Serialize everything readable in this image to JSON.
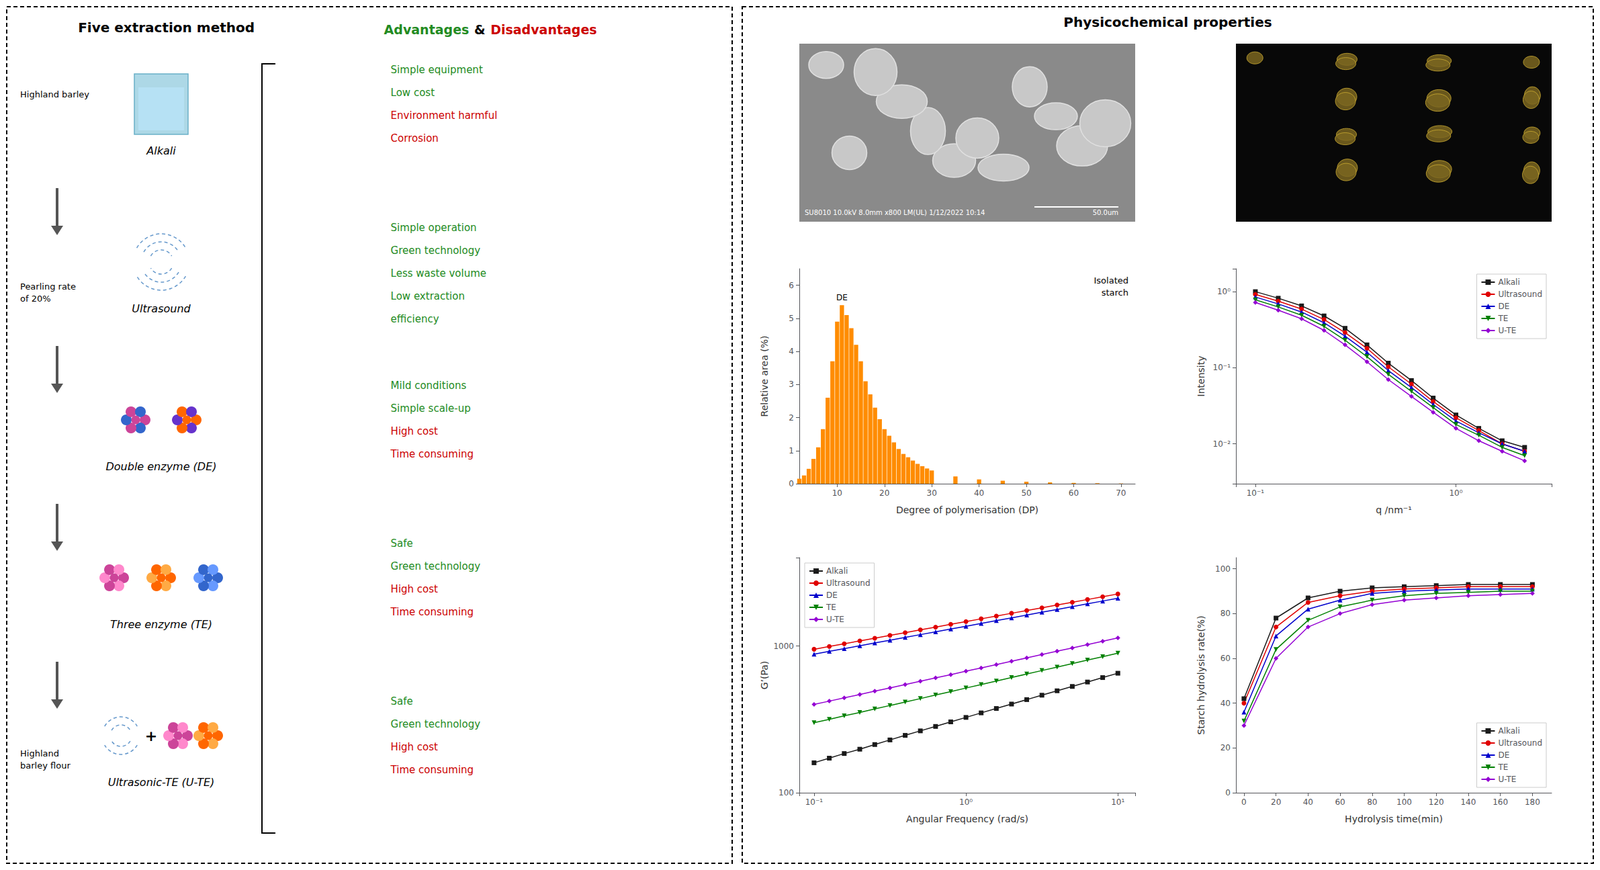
{
  "chart_data": [
    {
      "type": "diagram",
      "title": "Five extraction method",
      "categories": [
        "Alkali",
        "Ultrasound",
        "Double enzyme (DE)",
        "Three enzyme (TE)",
        "Ultrasonic-TE (U-TE)"
      ],
      "series": [
        {
          "name": "Advantages",
          "color": "#228B22",
          "values": [
            [
              "Simple equipment",
              "Low cost"
            ],
            [
              "Simple operation",
              "Green technology",
              "Less waste volume",
              "Low extraction",
              "efficiency"
            ],
            [
              "Mild conditions",
              "Simple scale-up"
            ],
            [
              "Safe",
              "Green technology"
            ],
            [
              "Safe",
              "Green technology"
            ]
          ]
        },
        {
          "name": "Disadvantages",
          "color": "#CC0000",
          "values": [
            [
              "Environment harmful",
              "Corrosion"
            ],
            [],
            [
              "High cost",
              "Time consuming"
            ],
            [
              "High cost",
              "Time consuming"
            ],
            [
              "High cost",
              "Time consuming"
            ]
          ]
        }
      ],
      "annotations": [
        "&",
        "Highland barley",
        "Pearling rate\nof 20%",
        "Highland\nbarley flour",
        "+"
      ]
    },
    {
      "type": "image",
      "title": "Physicochemical properties",
      "annotations": [
        "SU8010 10.0kV 8.0mm x800 LM(UL) 1/12/2022 10:14",
        "50.0um"
      ]
    },
    {
      "type": "bar",
      "x": [
        2,
        3,
        4,
        5,
        6,
        7,
        8,
        9,
        10,
        11,
        12,
        13,
        14,
        15,
        16,
        17,
        18,
        19,
        20,
        21,
        22,
        23,
        24,
        25,
        26,
        27,
        28,
        29,
        30,
        35,
        40,
        45,
        50,
        55,
        60,
        65,
        70
      ],
      "values": [
        0.15,
        0.25,
        0.45,
        0.75,
        1.1,
        1.65,
        2.6,
        3.7,
        4.9,
        5.4,
        5.1,
        4.7,
        4.2,
        3.7,
        3.1,
        2.7,
        2.3,
        1.95,
        1.65,
        1.45,
        1.25,
        1.05,
        0.9,
        0.8,
        0.7,
        0.6,
        0.53,
        0.46,
        0.4,
        0.22,
        0.13,
        0.09,
        0.06,
        0.04,
        0.025,
        0.015,
        0.008
      ],
      "color": "#FF8C00",
      "xlabel": "Degree of polymerisation (DP)",
      "ylabel": "Relative area (%)",
      "xlim": [
        2,
        73
      ],
      "xticks": [
        10,
        20,
        30,
        40,
        50,
        60,
        70
      ],
      "ylim": [
        0,
        6.5
      ],
      "yticks": [
        0,
        1,
        2,
        3,
        4,
        5,
        6
      ],
      "grid": false,
      "annotations": [
        "Isolated\nstarch",
        "DE"
      ]
    },
    {
      "type": "line",
      "x": [
        0.1,
        0.13,
        0.17,
        0.22,
        0.28,
        0.36,
        0.46,
        0.6,
        0.77,
        1.0,
        1.3,
        1.7,
        2.2
      ],
      "series": [
        {
          "name": "Alkali",
          "color": "#1a1a1a",
          "marker": "square",
          "values": [
            1.0,
            0.82,
            0.65,
            0.48,
            0.33,
            0.2,
            0.115,
            0.068,
            0.04,
            0.024,
            0.016,
            0.011,
            0.009
          ]
        },
        {
          "name": "Ultrasound",
          "color": "#e00000",
          "marker": "circle",
          "values": [
            0.92,
            0.75,
            0.59,
            0.43,
            0.29,
            0.18,
            0.103,
            0.061,
            0.036,
            0.022,
            0.015,
            0.01,
            0.008
          ]
        },
        {
          "name": "DE",
          "color": "#0000cc",
          "marker": "triangle-up",
          "values": [
            0.85,
            0.69,
            0.54,
            0.39,
            0.26,
            0.16,
            0.092,
            0.055,
            0.033,
            0.02,
            0.014,
            0.01,
            0.008
          ]
        },
        {
          "name": "TE",
          "color": "#008000",
          "marker": "triangle-down",
          "values": [
            0.78,
            0.63,
            0.49,
            0.35,
            0.23,
            0.14,
            0.082,
            0.049,
            0.03,
            0.018,
            0.013,
            0.009,
            0.007
          ]
        },
        {
          "name": "U-TE",
          "color": "#9400D3",
          "marker": "diamond",
          "values": [
            0.72,
            0.57,
            0.44,
            0.31,
            0.2,
            0.12,
            0.07,
            0.042,
            0.026,
            0.016,
            0.011,
            0.008,
            0.006
          ]
        }
      ],
      "xlabel": "q /nm⁻¹",
      "ylabel": "Intensity",
      "log": true,
      "xlim": [
        0.08,
        3
      ],
      "xticks": [
        {
          "value": 0.1,
          "label": "10⁻¹"
        },
        {
          "value": 1,
          "label": "10⁰"
        }
      ],
      "ylim": [
        0.003,
        2
      ],
      "yticks": [
        {
          "value": 0.01,
          "label": "10⁻²"
        },
        {
          "value": 0.1,
          "label": "10⁻¹"
        },
        {
          "value": 1,
          "label": "10⁰"
        }
      ],
      "grid": false,
      "legend": "upper right"
    },
    {
      "type": "line",
      "x": [
        0.1,
        0.126,
        0.158,
        0.2,
        0.251,
        0.316,
        0.398,
        0.501,
        0.631,
        0.794,
        1.0,
        1.259,
        1.585,
        1.995,
        2.512,
        3.162,
        3.981,
        5.012,
        6.31,
        7.943,
        10.0
      ],
      "series": [
        {
          "name": "Alkali",
          "color": "#1a1a1a",
          "marker": "square",
          "values": [
            160,
            172,
            185,
            198,
            213,
            229,
            246,
            264,
            283,
            304,
            326,
            350,
            375,
            402,
            431,
            462,
            495,
            530,
            568,
            609,
            652
          ]
        },
        {
          "name": "Ultrasound",
          "color": "#e00000",
          "marker": "circle",
          "values": [
            950,
            992,
            1036,
            1082,
            1130,
            1180,
            1232,
            1287,
            1344,
            1404,
            1466,
            1531,
            1599,
            1670,
            1744,
            1821,
            1901,
            1985,
            2073,
            2165,
            2261
          ]
        },
        {
          "name": "DE",
          "color": "#0000cc",
          "marker": "triangle-up",
          "values": [
            880,
            919,
            960,
            1003,
            1048,
            1095,
            1144,
            1195,
            1249,
            1305,
            1363,
            1424,
            1488,
            1555,
            1625,
            1698,
            1774,
            1854,
            1937,
            2024,
            2115
          ]
        },
        {
          "name": "TE",
          "color": "#008000",
          "marker": "triangle-down",
          "values": [
            300,
            316,
            334,
            352,
            372,
            393,
            415,
            438,
            463,
            489,
            517,
            546,
            577,
            610,
            644,
            680,
            718,
            759,
            801,
            846,
            894
          ]
        },
        {
          "name": "U-TE",
          "color": "#9400D3",
          "marker": "diamond",
          "values": [
            400,
            421,
            443,
            467,
            492,
            518,
            546,
            575,
            606,
            638,
            673,
            709,
            747,
            787,
            829,
            874,
            921,
            970,
            1022,
            1077,
            1134
          ]
        }
      ],
      "xlabel": "Angular Frequency (rad/s)",
      "ylabel": "G’(Pa)",
      "log": true,
      "xlim": [
        0.08,
        13
      ],
      "xticks": [
        {
          "value": 0.1,
          "label": "10⁻¹"
        },
        {
          "value": 1,
          "label": "10⁰"
        },
        {
          "value": 10,
          "label": "10¹"
        }
      ],
      "ylim": [
        100,
        4000
      ],
      "yticks": [
        100,
        1000
      ],
      "grid": false,
      "legend": "upper left"
    },
    {
      "type": "line",
      "x": [
        0,
        20,
        40,
        60,
        80,
        100,
        120,
        140,
        160,
        180
      ],
      "series": [
        {
          "name": "Alkali",
          "color": "#1a1a1a",
          "marker": "square",
          "values": [
            42,
            78,
            87,
            90,
            91.5,
            92,
            92.5,
            93,
            93,
            93
          ]
        },
        {
          "name": "Ultrasound",
          "color": "#e00000",
          "marker": "circle",
          "values": [
            40,
            74,
            85,
            88,
            90,
            91,
            91.5,
            92,
            92,
            92
          ]
        },
        {
          "name": "DE",
          "color": "#0000cc",
          "marker": "triangle-up",
          "values": [
            36,
            70,
            82,
            86,
            89,
            90,
            90.5,
            91,
            91,
            91
          ]
        },
        {
          "name": "TE",
          "color": "#008000",
          "marker": "triangle-down",
          "values": [
            32,
            64,
            77,
            83,
            86,
            88,
            89,
            89.5,
            90,
            90
          ]
        },
        {
          "name": "U-TE",
          "color": "#9400D3",
          "marker": "diamond",
          "values": [
            30,
            60,
            74,
            80,
            84,
            86,
            87,
            88,
            88.5,
            89
          ]
        }
      ],
      "xlabel": "Hydrolysis time(min)",
      "ylabel": "Starch hydrolysis rate(%)",
      "xlim": [
        -5,
        192
      ],
      "xticks": [
        0,
        20,
        40,
        60,
        80,
        100,
        120,
        140,
        160,
        180
      ],
      "ylim": [
        0,
        105
      ],
      "yticks": [
        0,
        20,
        40,
        60,
        80,
        100
      ],
      "grid": false,
      "legend": "lower right"
    }
  ]
}
